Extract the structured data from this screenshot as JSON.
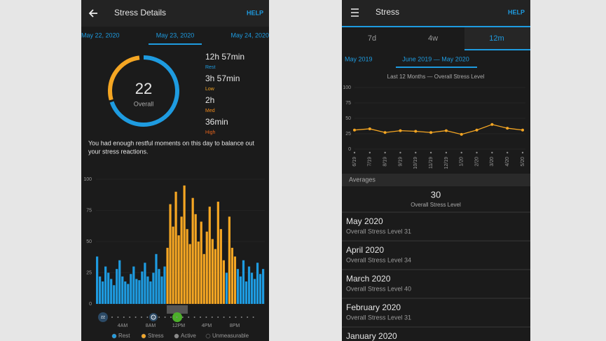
{
  "left": {
    "header": {
      "title": "Stress Details",
      "help": "HELP"
    },
    "date_tabs": [
      "May 22, 2020",
      "May 23, 2020",
      "May 24, 2020"
    ],
    "overall": {
      "value": 22,
      "label": "Overall"
    },
    "stats": [
      {
        "value": "12h 57min",
        "label": "Rest",
        "color": "#1e9be0"
      },
      {
        "value": "3h 57min",
        "label": "Low",
        "color": "#f5a623"
      },
      {
        "value": "2h",
        "label": "Med",
        "color": "#f08a1c"
      },
      {
        "value": "36min",
        "label": "High",
        "color": "#e8641c"
      }
    ],
    "message": [
      "You had enough restful moments on this day to balance out",
      "your stress reactions."
    ],
    "chart_data": {
      "type": "bar",
      "ylim": [
        0,
        100
      ],
      "yticks": [
        0,
        25,
        50,
        75,
        100
      ],
      "x_labels": [
        "4AM",
        "8AM",
        "12PM",
        "4PM",
        "8PM"
      ],
      "series": [
        {
          "name": "Rest",
          "color": "#1e9be0",
          "values": [
            38,
            22,
            18,
            30,
            25,
            20,
            15,
            28,
            35,
            22,
            18,
            16,
            24,
            30,
            20,
            19,
            26,
            33,
            22,
            18,
            25,
            40,
            28,
            22,
            30,
            null,
            null,
            null,
            null,
            null,
            null,
            null,
            null,
            null,
            null,
            null,
            null,
            null,
            null,
            null,
            null,
            null,
            null,
            null,
            null,
            null,
            25,
            null,
            null,
            null,
            28,
            22,
            35,
            18,
            30,
            25,
            20,
            33,
            24,
            28
          ]
        },
        {
          "name": "Stress",
          "color": "#f5a623",
          "values": [
            null,
            null,
            null,
            null,
            null,
            null,
            null,
            null,
            null,
            null,
            null,
            null,
            null,
            null,
            null,
            null,
            null,
            null,
            null,
            null,
            null,
            null,
            null,
            null,
            null,
            45,
            80,
            62,
            90,
            55,
            70,
            95,
            60,
            48,
            85,
            72,
            50,
            66,
            40,
            58,
            78,
            52,
            44,
            82,
            60,
            35,
            null,
            70,
            45,
            38,
            null,
            null,
            null,
            null,
            null,
            null,
            null,
            null,
            null,
            null
          ]
        }
      ],
      "legend_extra": [
        {
          "name": "Active",
          "color": "#8a8a8a"
        },
        {
          "name": "Unmeasurable",
          "color": "#1a1a1a"
        }
      ]
    }
  },
  "right": {
    "header": {
      "title": "Stress",
      "help": "HELP"
    },
    "range_tabs": [
      "7d",
      "4w",
      "12m"
    ],
    "period_tabs": [
      "May 2019",
      "June 2019 — May 2020"
    ],
    "chart_data": {
      "type": "line",
      "title": "Last 12 Months — Overall Stress Level",
      "categories": [
        "6/19",
        "7/19",
        "8/19",
        "9/19",
        "10/19",
        "11/19",
        "12/19",
        "1/20",
        "2/20",
        "3/20",
        "4/20",
        "5/20"
      ],
      "values": [
        31,
        33,
        27,
        30,
        29,
        27,
        30,
        24,
        31,
        40,
        34,
        31
      ],
      "color": "#f5a623",
      "ylim": [
        0,
        100
      ],
      "yticks": [
        0,
        25,
        50,
        75,
        100
      ]
    },
    "averages": {
      "heading": "Averages",
      "value": 30,
      "label": "Overall Stress Level"
    },
    "months": [
      {
        "title": "May 2020",
        "subtitle": "Overall Stress Level 31"
      },
      {
        "title": "April 2020",
        "subtitle": "Overall Stress Level 34"
      },
      {
        "title": "March 2020",
        "subtitle": "Overall Stress Level 40"
      },
      {
        "title": "February 2020",
        "subtitle": "Overall Stress Level 31"
      },
      {
        "title": "January 2020"
      }
    ]
  }
}
